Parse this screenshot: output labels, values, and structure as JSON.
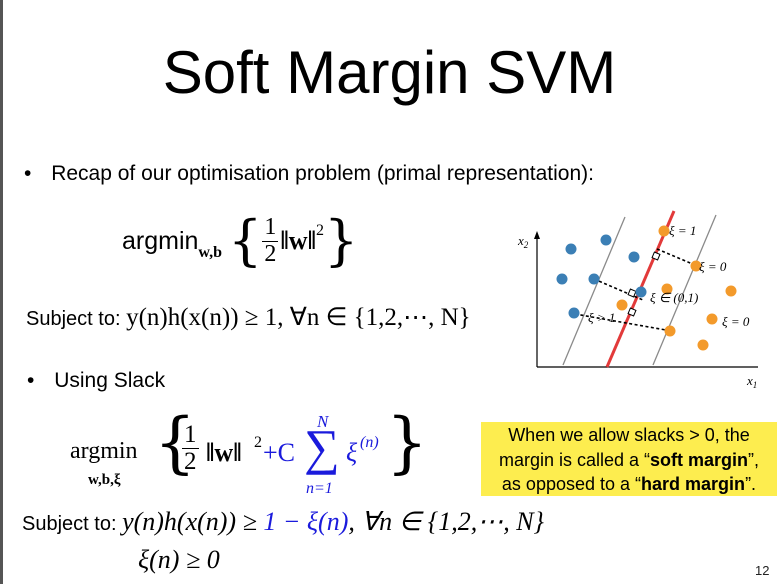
{
  "slide": {
    "title": "Soft Margin SVM",
    "page_number": "12"
  },
  "bullets": {
    "b1": "Recap of our optimisation problem (primal representation):",
    "b2": "Using Slack",
    "symbol": "•"
  },
  "primal": {
    "argmin": "argmin",
    "subscript": "w,b",
    "half_num": "1",
    "half_den": "2",
    "norm": "‖w‖",
    "sq": "2",
    "subject_to": "Subject to: ",
    "constraint": "y(n)h(x(n)) ≥ 1, ∀n ∈ {1,2,⋯, N}"
  },
  "slack": {
    "argmin": "argmin",
    "subscript": "w,b,ξ",
    "half_num": "1",
    "half_den": "2",
    "norm": "‖w‖",
    "sq": "2",
    "plus_c": "+C",
    "sum_top": "N",
    "sum_bottom": "n=1",
    "xi": "ξ",
    "xi_sup": "(n)",
    "subject_to": "Subject to: ",
    "constraint_lhs": "y(n)h(x(n)) ≥ ",
    "constraint_mid": "1 − ξ(n)",
    "constraint_rhs": ", ∀n ∈ {1,2,⋯, N}",
    "nonneg": "ξ(n) ≥ 0"
  },
  "callout": {
    "line1": "When we allow slacks > 0, the",
    "line2_a": "margin is called a “",
    "line2_b": "soft margin",
    "line2_c": "”,",
    "line3_a": "as opposed to a “",
    "line3_b": "hard margin",
    "line3_c": "”."
  },
  "diagram": {
    "x_axis": "x1",
    "y_axis": "x2",
    "labels": {
      "xi_eq_1": "ξ = 1",
      "xi_eq_0_upper": "ξ = 0",
      "xi_in_01": "ξ ∈ (0,1)",
      "xi_gt_1": "ξ > 1",
      "xi_eq_0_lower": "ξ = 0"
    },
    "colors": {
      "blue_points": "#3b7fb5",
      "orange_points": "#f39a2b",
      "boundary": "#e23a3a",
      "margins": "#8a8a8a"
    }
  },
  "colors": {
    "callout_bg": "#fded4f",
    "math_highlight": "#1a1adc"
  }
}
